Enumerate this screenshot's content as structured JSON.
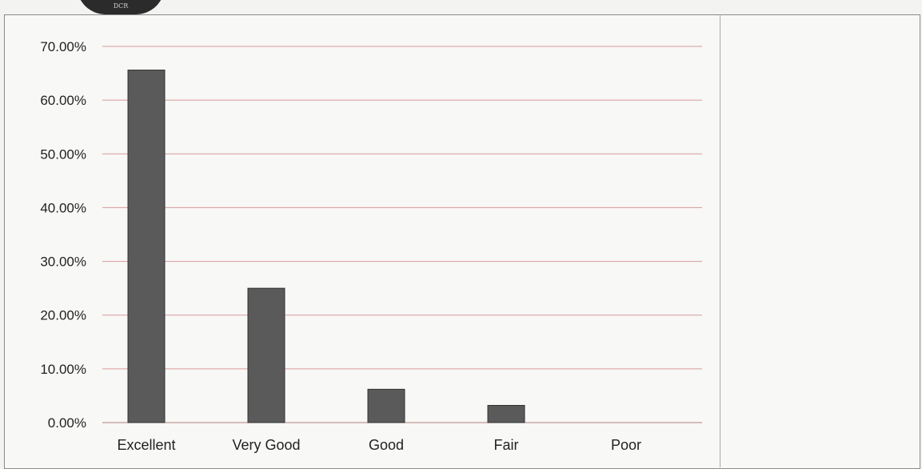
{
  "logo": {
    "text": "DCR"
  },
  "chart_data": {
    "type": "bar",
    "categories": [
      "Excellent",
      "Very Good",
      "Good",
      "Fair",
      "Poor"
    ],
    "values": [
      65.6,
      25.0,
      6.2,
      3.2,
      0.0
    ],
    "yticks": [
      "0.00%",
      "10.00%",
      "20.00%",
      "30.00%",
      "40.00%",
      "50.00%",
      "60.00%",
      "70.00%"
    ],
    "ylim": [
      0,
      70
    ],
    "grid": true,
    "bar_color": "#5a5a5a",
    "grid_color": "#d89a9a"
  }
}
